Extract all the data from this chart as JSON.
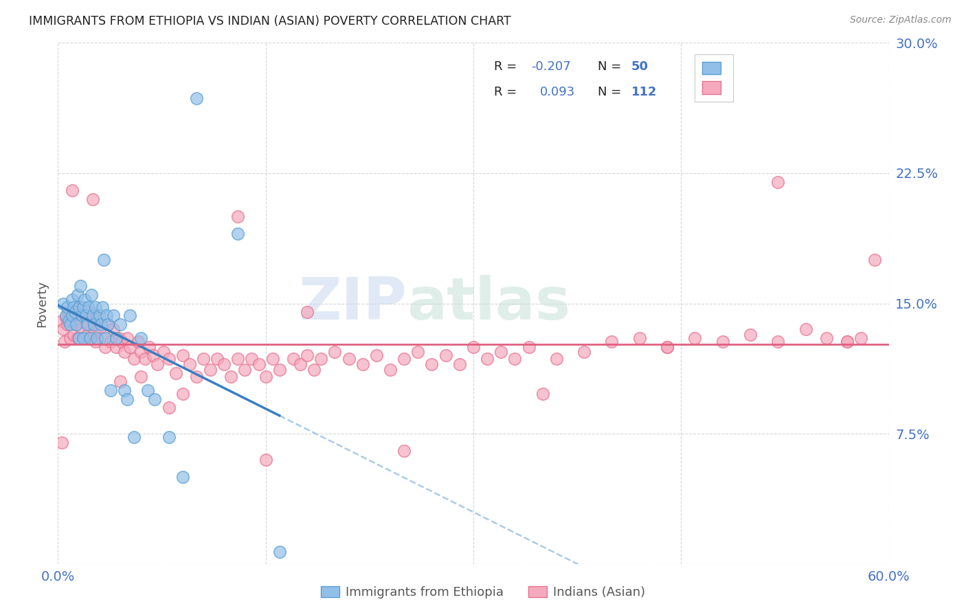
{
  "title": "IMMIGRANTS FROM ETHIOPIA VS INDIAN (ASIAN) POVERTY CORRELATION CHART",
  "source": "Source: ZipAtlas.com",
  "ylabel": "Poverty",
  "xlim": [
    0.0,
    0.6
  ],
  "ylim": [
    0.0,
    0.3
  ],
  "yticks": [
    0.0,
    0.075,
    0.15,
    0.225,
    0.3
  ],
  "ytick_labels": [
    "",
    "7.5%",
    "15.0%",
    "22.5%",
    "30.0%"
  ],
  "xticks": [
    0.0,
    0.15,
    0.3,
    0.45,
    0.6
  ],
  "xtick_labels": [
    "0.0%",
    "",
    "",
    "",
    "60.0%"
  ],
  "series1_label": "Immigrants from Ethiopia",
  "series2_label": "Indians (Asian)",
  "series1_color": "#92bfe8",
  "series2_color": "#f4aabc",
  "series1_edge_color": "#5a9fd4",
  "series2_edge_color": "#e87090",
  "trend1_color": "#3a7ec0",
  "trend2_color": "#e06080",
  "background_color": "#ffffff",
  "grid_color": "#cccccc",
  "title_color": "#333333",
  "tick_color": "#4472c4",
  "watermark": "ZIPatlas",
  "ethiopia_x": [
    0.004,
    0.006,
    0.007,
    0.008,
    0.009,
    0.01,
    0.01,
    0.011,
    0.012,
    0.013,
    0.014,
    0.015,
    0.015,
    0.016,
    0.017,
    0.018,
    0.018,
    0.019,
    0.02,
    0.021,
    0.022,
    0.023,
    0.024,
    0.025,
    0.026,
    0.027,
    0.028,
    0.03,
    0.031,
    0.032,
    0.033,
    0.034,
    0.035,
    0.036,
    0.038,
    0.04,
    0.042,
    0.045,
    0.048,
    0.05,
    0.052,
    0.055,
    0.06,
    0.065,
    0.07,
    0.08,
    0.09,
    0.1,
    0.13,
    0.16
  ],
  "ethiopia_y": [
    0.15,
    0.143,
    0.148,
    0.14,
    0.138,
    0.152,
    0.143,
    0.148,
    0.145,
    0.138,
    0.155,
    0.148,
    0.13,
    0.16,
    0.143,
    0.148,
    0.13,
    0.152,
    0.143,
    0.138,
    0.148,
    0.13,
    0.155,
    0.143,
    0.138,
    0.148,
    0.13,
    0.143,
    0.138,
    0.148,
    0.175,
    0.13,
    0.143,
    0.138,
    0.1,
    0.143,
    0.13,
    0.138,
    0.1,
    0.095,
    0.143,
    0.073,
    0.13,
    0.1,
    0.095,
    0.073,
    0.05,
    0.268,
    0.19,
    0.007
  ],
  "india_x": [
    0.003,
    0.004,
    0.005,
    0.006,
    0.007,
    0.008,
    0.009,
    0.01,
    0.011,
    0.012,
    0.013,
    0.014,
    0.015,
    0.016,
    0.017,
    0.018,
    0.019,
    0.02,
    0.021,
    0.022,
    0.023,
    0.024,
    0.025,
    0.026,
    0.027,
    0.028,
    0.03,
    0.032,
    0.034,
    0.036,
    0.038,
    0.04,
    0.042,
    0.044,
    0.046,
    0.048,
    0.05,
    0.052,
    0.055,
    0.058,
    0.06,
    0.063,
    0.066,
    0.069,
    0.072,
    0.076,
    0.08,
    0.085,
    0.09,
    0.095,
    0.1,
    0.105,
    0.11,
    0.115,
    0.12,
    0.125,
    0.13,
    0.135,
    0.14,
    0.145,
    0.15,
    0.155,
    0.16,
    0.17,
    0.175,
    0.18,
    0.185,
    0.19,
    0.2,
    0.21,
    0.22,
    0.23,
    0.24,
    0.25,
    0.26,
    0.27,
    0.28,
    0.29,
    0.3,
    0.31,
    0.32,
    0.33,
    0.34,
    0.36,
    0.38,
    0.4,
    0.42,
    0.44,
    0.46,
    0.48,
    0.5,
    0.52,
    0.54,
    0.555,
    0.57,
    0.58,
    0.59,
    0.01,
    0.025,
    0.06,
    0.09,
    0.13,
    0.18,
    0.25,
    0.35,
    0.44,
    0.52,
    0.57,
    0.003,
    0.045,
    0.08,
    0.15
  ],
  "india_y": [
    0.14,
    0.135,
    0.128,
    0.142,
    0.138,
    0.145,
    0.13,
    0.14,
    0.132,
    0.145,
    0.138,
    0.13,
    0.148,
    0.14,
    0.135,
    0.143,
    0.13,
    0.14,
    0.132,
    0.138,
    0.145,
    0.13,
    0.14,
    0.135,
    0.128,
    0.142,
    0.135,
    0.13,
    0.125,
    0.138,
    0.128,
    0.135,
    0.125,
    0.13,
    0.128,
    0.122,
    0.13,
    0.125,
    0.118,
    0.128,
    0.122,
    0.118,
    0.125,
    0.12,
    0.115,
    0.122,
    0.118,
    0.11,
    0.12,
    0.115,
    0.108,
    0.118,
    0.112,
    0.118,
    0.115,
    0.108,
    0.118,
    0.112,
    0.118,
    0.115,
    0.108,
    0.118,
    0.112,
    0.118,
    0.115,
    0.12,
    0.112,
    0.118,
    0.122,
    0.118,
    0.115,
    0.12,
    0.112,
    0.118,
    0.122,
    0.115,
    0.12,
    0.115,
    0.125,
    0.118,
    0.122,
    0.118,
    0.125,
    0.118,
    0.122,
    0.128,
    0.13,
    0.125,
    0.13,
    0.128,
    0.132,
    0.128,
    0.135,
    0.13,
    0.128,
    0.13,
    0.175,
    0.215,
    0.21,
    0.108,
    0.098,
    0.2,
    0.145,
    0.065,
    0.098,
    0.125,
    0.22,
    0.128,
    0.07,
    0.105,
    0.09,
    0.06
  ]
}
